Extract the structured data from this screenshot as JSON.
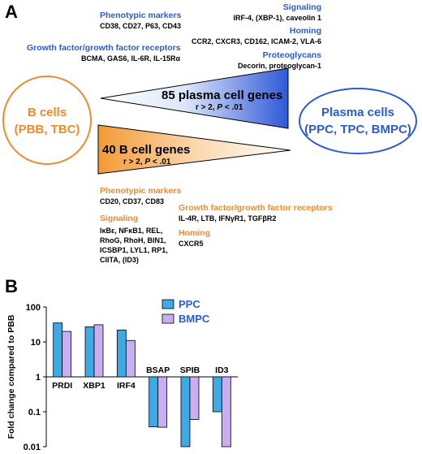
{
  "panel_a": {
    "letter": "A",
    "b_cells": {
      "line1": "B cells",
      "line2": "(PBB, TBC)"
    },
    "plasma_cells": {
      "line1": "Plasma cells",
      "line2": "(PPC, TPC, BMPC)"
    },
    "plasma_wedge": {
      "title": "85 plasma cell genes",
      "sub_prefix": "r > 2, ",
      "sub_p": "P",
      "sub_suffix": " < .01"
    },
    "b_wedge": {
      "title": "40 B cell genes",
      "sub_prefix": "r > 2, ",
      "sub_p": "P",
      "sub_suffix": " < .01"
    },
    "top_categories": {
      "phenotypic": {
        "label": "Phenotypic markers",
        "items": "CD38, CD27, P63, CD43"
      },
      "signaling": {
        "label": "Signaling",
        "items": "IRF-4, (XBP-1), caveolin 1"
      },
      "homing": {
        "label": "Homing",
        "items": "CCR2, CXCR3, CD162, ICAM-2, VLA-6"
      },
      "growth": {
        "label": "Growth factor/growth factor receptors",
        "items": "BCMA, GAS6, IL-6R, IL-15Rα"
      },
      "proteoglycans": {
        "label": "Proteoglycans",
        "items": "Decorin, proteoglycan-1"
      }
    },
    "bottom_categories": {
      "phenotypic": {
        "label": "Phenotypic markers",
        "items": "CD20, CD37, CD83"
      },
      "signaling": {
        "label": "Signaling",
        "items": "IκBε, NFκB1, REL, RhoG, RhoH, BIN1, ICSBP1, LYL1, RP1, CIITA, (ID3)"
      },
      "growth": {
        "label": "Growth factor/growth factor receptors",
        "items": "IL-4R, LTB, IFNγR1, TGFβR2"
      },
      "homing": {
        "label": "Homing",
        "items": "CXCR5"
      }
    },
    "colors": {
      "orange": "#f08a2c",
      "blue": "#2a5bd7"
    }
  },
  "panel_b": {
    "letter": "B"
  },
  "chart_data": {
    "type": "bar",
    "categories": [
      "PRDI",
      "XBP1",
      "IRF4",
      "BSAP",
      "SPIB",
      "ID3"
    ],
    "series": [
      {
        "name": "PPC",
        "values": [
          35,
          27,
          22,
          0.037,
          0.01,
          0.1
        ],
        "color": "#3fa9e6"
      },
      {
        "name": "BMPC",
        "values": [
          20,
          31,
          11,
          0.036,
          0.06,
          0.01
        ],
        "color": "#c9aef0"
      }
    ],
    "ylabel": "Fold change compared to PBB",
    "yscale": "log",
    "ylim": [
      0.01,
      100
    ],
    "yticks": [
      100,
      10,
      1,
      0.1,
      0.01
    ],
    "ytick_labels": [
      "100",
      "10",
      "1",
      "0.1",
      "0.01"
    ],
    "legend_position": "top-right"
  }
}
